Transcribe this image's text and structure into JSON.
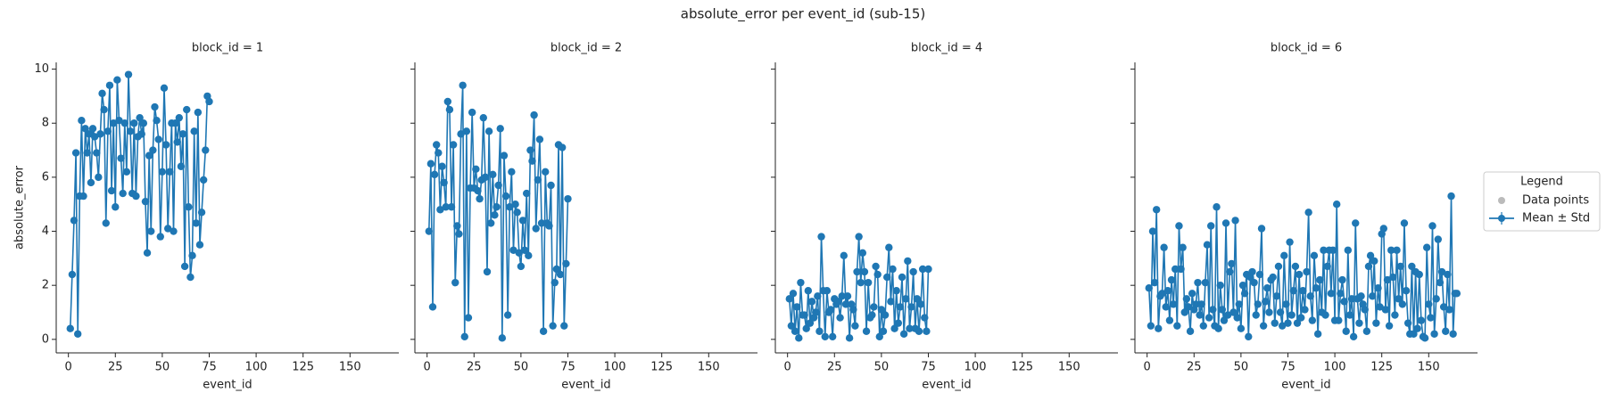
{
  "title": "absolute_error per event_id (sub-15)",
  "legend": {
    "title": "Legend",
    "items": [
      {
        "name": "Data points",
        "color": "#bbbbbb"
      },
      {
        "name": "Mean ± Std",
        "color": "#1f77b4"
      }
    ]
  },
  "chart_data": [
    {
      "type": "line",
      "title": "block_id = 1",
      "xlabel": "event_id",
      "ylabel": "absolute_error",
      "color": "#1f77b4",
      "xlim": [
        -6.5,
        176
      ],
      "ylim": [
        -0.5,
        10.25
      ],
      "xticks": [
        0,
        25,
        50,
        75,
        100,
        125,
        150
      ],
      "yticks": [
        0,
        2,
        4,
        6,
        8,
        10
      ],
      "x": [
        1,
        2,
        3,
        4,
        5,
        6,
        7,
        8,
        9,
        10,
        11,
        12,
        13,
        14,
        15,
        16,
        17,
        18,
        19,
        20,
        21,
        22,
        23,
        24,
        25,
        26,
        27,
        28,
        29,
        30,
        31,
        32,
        33,
        34,
        35,
        36,
        37,
        38,
        39,
        40,
        41,
        42,
        43,
        44,
        45,
        46,
        47,
        48,
        49,
        50,
        51,
        52,
        53,
        54,
        55,
        56,
        57,
        58,
        59,
        60,
        61,
        62,
        63,
        64,
        65,
        66,
        67,
        68,
        69,
        70,
        71,
        72,
        73,
        74,
        75
      ],
      "values": [
        0.4,
        2.4,
        4.4,
        6.9,
        0.2,
        5.3,
        8.1,
        5.3,
        7.8,
        6.9,
        7.6,
        5.8,
        7.8,
        7.5,
        6.9,
        6.0,
        7.6,
        9.1,
        8.5,
        4.3,
        7.7,
        9.4,
        5.5,
        8.0,
        4.9,
        9.6,
        8.1,
        6.7,
        5.4,
        8.0,
        6.2,
        9.8,
        7.7,
        5.4,
        8.0,
        5.3,
        7.5,
        8.2,
        7.6,
        8.0,
        5.1,
        3.2,
        6.8,
        4.0,
        7.0,
        8.6,
        8.1,
        7.4,
        3.8,
        6.2,
        9.3,
        7.2,
        4.1,
        6.2,
        8.0,
        4.0,
        8.0,
        7.3,
        8.2,
        6.4,
        7.6,
        2.7,
        8.5,
        4.9,
        2.3,
        3.1,
        7.7,
        4.3,
        8.4,
        3.5,
        4.7,
        5.9,
        7.0,
        9.0,
        8.8
      ]
    },
    {
      "type": "line",
      "title": "block_id = 2",
      "xlabel": "event_id",
      "color": "#1f77b4",
      "xlim": [
        -6.5,
        176
      ],
      "ylim": [
        -0.5,
        10.25
      ],
      "xticks": [
        0,
        25,
        50,
        75,
        100,
        125,
        150
      ],
      "yticks": [
        0,
        2,
        4,
        6,
        8,
        10
      ],
      "x": [
        1,
        2,
        3,
        4,
        5,
        6,
        7,
        8,
        9,
        10,
        11,
        12,
        13,
        14,
        15,
        16,
        17,
        18,
        19,
        20,
        21,
        22,
        23,
        24,
        25,
        26,
        27,
        28,
        29,
        30,
        31,
        32,
        33,
        34,
        35,
        36,
        37,
        38,
        39,
        40,
        41,
        42,
        43,
        44,
        45,
        46,
        47,
        48,
        49,
        50,
        51,
        52,
        53,
        54,
        55,
        56,
        57,
        58,
        59,
        60,
        61,
        62,
        63,
        64,
        65,
        66,
        67,
        68,
        69,
        70,
        71,
        72,
        73,
        74,
        75
      ],
      "values": [
        4.0,
        6.5,
        1.2,
        6.1,
        7.2,
        6.9,
        4.8,
        6.4,
        5.8,
        4.9,
        8.8,
        8.5,
        4.9,
        7.2,
        2.1,
        4.2,
        3.9,
        7.6,
        9.4,
        0.1,
        7.7,
        0.8,
        5.6,
        8.4,
        5.6,
        6.3,
        5.5,
        5.2,
        5.9,
        8.2,
        6.0,
        2.5,
        7.7,
        4.3,
        6.1,
        4.6,
        4.9,
        5.7,
        7.8,
        0.05,
        6.8,
        5.3,
        0.9,
        4.9,
        6.2,
        3.3,
        5.0,
        4.7,
        3.2,
        2.7,
        4.4,
        3.3,
        5.4,
        3.1,
        7.0,
        6.6,
        8.3,
        4.1,
        5.9,
        7.4,
        4.3,
        0.3,
        6.2,
        4.3,
        4.2,
        5.7,
        0.5,
        2.1,
        2.6,
        7.2,
        2.4,
        7.1,
        0.5,
        2.8,
        5.2
      ]
    },
    {
      "type": "line",
      "title": "block_id = 4",
      "xlabel": "event_id",
      "color": "#1f77b4",
      "xlim": [
        -6.5,
        176
      ],
      "ylim": [
        -0.5,
        10.25
      ],
      "xticks": [
        0,
        25,
        50,
        75,
        100,
        125,
        150
      ],
      "yticks": [
        0,
        2,
        4,
        6,
        8,
        10
      ],
      "x": [
        1,
        2,
        3,
        4,
        5,
        6,
        7,
        8,
        9,
        10,
        11,
        12,
        13,
        14,
        15,
        16,
        17,
        18,
        19,
        20,
        21,
        22,
        23,
        24,
        25,
        26,
        27,
        28,
        29,
        30,
        31,
        32,
        33,
        34,
        35,
        36,
        37,
        38,
        39,
        40,
        41,
        42,
        43,
        44,
        45,
        46,
        47,
        48,
        49,
        50,
        51,
        52,
        53,
        54,
        55,
        56,
        57,
        58,
        59,
        60,
        61,
        62,
        63,
        64,
        65,
        66,
        67,
        68,
        69,
        70,
        71,
        72,
        73,
        74,
        75
      ],
      "values": [
        1.5,
        0.5,
        1.7,
        0.3,
        1.2,
        0.05,
        2.1,
        0.9,
        0.9,
        0.4,
        1.8,
        0.6,
        1.4,
        0.8,
        1.0,
        1.6,
        0.3,
        3.8,
        1.8,
        0.1,
        1.8,
        1.0,
        1.1,
        0.1,
        1.5,
        1.3,
        1.4,
        0.8,
        1.6,
        3.1,
        1.3,
        1.6,
        0.05,
        1.3,
        1.1,
        0.5,
        2.5,
        3.8,
        2.1,
        3.2,
        2.5,
        0.3,
        2.1,
        0.8,
        0.9,
        1.2,
        2.7,
        2.4,
        0.1,
        1.1,
        0.3,
        0.9,
        2.3,
        3.4,
        1.4,
        2.6,
        0.4,
        1.8,
        0.6,
        1.2,
        2.3,
        0.2,
        1.5,
        2.9,
        0.4,
        1.2,
        2.5,
        0.4,
        1.5,
        0.3,
        1.3,
        2.6,
        0.8,
        0.3,
        2.6
      ]
    },
    {
      "type": "line",
      "title": "block_id = 6",
      "xlabel": "event_id",
      "color": "#1f77b4",
      "xlim": [
        -6.5,
        176
      ],
      "ylim": [
        -0.5,
        10.25
      ],
      "xticks": [
        0,
        25,
        50,
        75,
        100,
        125,
        150
      ],
      "yticks": [
        0,
        2,
        4,
        6,
        8,
        10
      ],
      "x": [
        1,
        2,
        3,
        4,
        5,
        6,
        7,
        8,
        9,
        10,
        11,
        12,
        13,
        14,
        15,
        16,
        17,
        18,
        19,
        20,
        21,
        22,
        23,
        24,
        25,
        26,
        27,
        28,
        29,
        30,
        31,
        32,
        33,
        34,
        35,
        36,
        37,
        38,
        39,
        40,
        41,
        42,
        43,
        44,
        45,
        46,
        47,
        48,
        49,
        50,
        51,
        52,
        53,
        54,
        55,
        56,
        57,
        58,
        59,
        60,
        61,
        62,
        63,
        64,
        65,
        66,
        67,
        68,
        69,
        70,
        71,
        72,
        73,
        74,
        75,
        76,
        77,
        78,
        79,
        80,
        81,
        82,
        83,
        84,
        85,
        86,
        87,
        88,
        89,
        90,
        91,
        92,
        93,
        94,
        95,
        96,
        97,
        98,
        99,
        100,
        101,
        102,
        103,
        104,
        105,
        106,
        107,
        108,
        109,
        110,
        111,
        112,
        113,
        114,
        115,
        116,
        117,
        118,
        119,
        120,
        121,
        122,
        123,
        124,
        125,
        126,
        127,
        128,
        129,
        130,
        131,
        132,
        133,
        134,
        135,
        136,
        137,
        138,
        139,
        140,
        141,
        142,
        143,
        144,
        145,
        146,
        147,
        148,
        149,
        150,
        151,
        152,
        153,
        154,
        155,
        156,
        157,
        158,
        159,
        160,
        161,
        162,
        163,
        164,
        165
      ],
      "values": [
        1.9,
        0.5,
        4.0,
        2.1,
        4.8,
        0.4,
        1.6,
        1.7,
        3.4,
        1.2,
        1.8,
        0.7,
        2.2,
        1.3,
        2.6,
        0.5,
        4.2,
        2.6,
        3.4,
        1.0,
        1.5,
        1.2,
        0.3,
        1.7,
        1.1,
        1.3,
        2.1,
        0.9,
        1.3,
        0.5,
        2.1,
        3.5,
        0.8,
        4.2,
        1.1,
        0.5,
        4.9,
        0.4,
        2.0,
        1.1,
        0.7,
        4.3,
        0.9,
        2.5,
        2.8,
        1.0,
        4.4,
        0.8,
        1.3,
        0.4,
        2.0,
        1.7,
        2.4,
        0.1,
        2.3,
        2.5,
        2.1,
        0.9,
        1.3,
        2.4,
        4.1,
        0.5,
        1.4,
        1.9,
        1.0,
        2.2,
        2.3,
        0.6,
        1.6,
        2.7,
        1.0,
        0.5,
        3.1,
        1.3,
        0.6,
        3.6,
        0.9,
        1.8,
        2.7,
        0.6,
        2.4,
        0.8,
        1.8,
        1.1,
        2.5,
        4.7,
        1.6,
        0.7,
        3.1,
        1.9,
        0.2,
        2.2,
        1.0,
        3.3,
        0.9,
        2.7,
        3.3,
        1.7,
        3.3,
        0.7,
        5.0,
        0.7,
        1.7,
        2.2,
        1.4,
        0.3,
        3.3,
        0.9,
        1.5,
        0.1,
        4.3,
        1.5,
        0.6,
        1.6,
        1.3,
        1.1,
        0.3,
        2.7,
        3.1,
        1.6,
        2.9,
        0.6,
        1.9,
        1.2,
        3.9,
        4.1,
        1.1,
        2.2,
        0.5,
        3.3,
        2.3,
        0.9,
        3.3,
        1.5,
        2.7,
        1.3,
        4.3,
        1.8,
        0.6,
        0.2,
        2.7,
        0.2,
        2.5,
        0.4,
        2.4,
        0.7,
        0.1,
        0.05,
        3.4,
        1.3,
        0.8,
        4.2,
        0.2,
        1.5,
        3.7,
        2.1,
        2.5,
        1.2,
        0.3,
        2.4,
        1.1,
        5.3,
        0.2,
        1.7,
        1.7
      ]
    }
  ]
}
